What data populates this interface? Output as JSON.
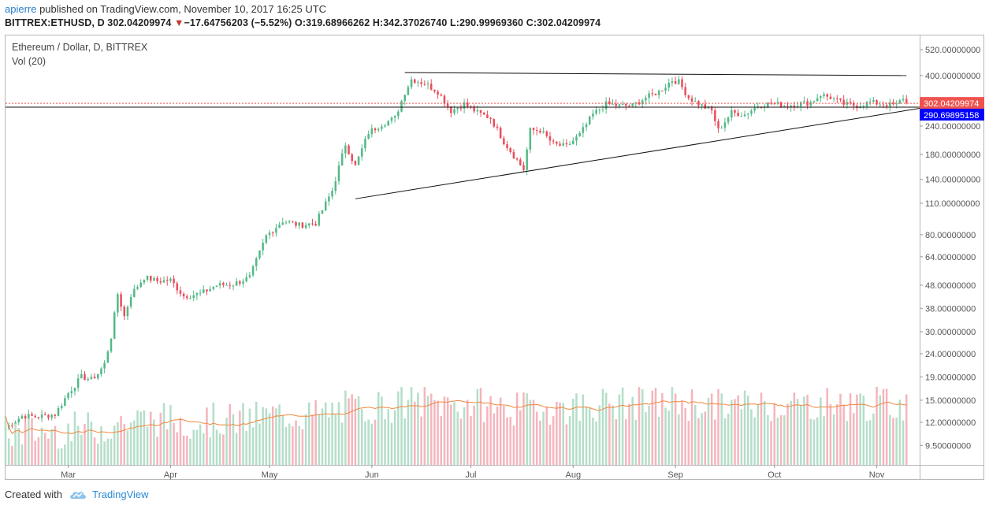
{
  "header": {
    "publisher": "apierre",
    "published_text": " published on TradingView.com, November 10, 2017 16:25 UTC",
    "symbol": "BITTREX:ETHUSD, D",
    "last": "302.04209974",
    "change": "−17.64756203 (−5.52%)",
    "open_label": "O:",
    "open": "319.68966262",
    "high_label": "H:",
    "high": "342.37026740",
    "low_label": "L:",
    "low": "290.99969360",
    "close_label": "C:",
    "close": "302.04209974"
  },
  "legend": {
    "title": "Ethereum / Dollar, D, BITTREX",
    "volume": "Vol (20)"
  },
  "footer": {
    "created_with": "Created with",
    "brand": "TradingView"
  },
  "colors": {
    "up": "#53b987",
    "down": "#eb4d5c",
    "vol_up": "#b5dec9",
    "vol_down": "#f5b5bc",
    "ma": "#f0883e",
    "last_price_tag": "#ef5350",
    "line_tag": "#0000ff"
  },
  "chart_data": {
    "type": "candlestick",
    "title": "Ethereum / Dollar, D, BITTREX",
    "y_scale": "log",
    "ylim": [
      7.8,
      600
    ],
    "y_ticks": [
      "520.00000000",
      "400.00000000",
      "240.00000000",
      "180.00000000",
      "140.00000000",
      "110.00000000",
      "80.00000000",
      "64.00000000",
      "48.00000000",
      "38.00000000",
      "30.00000000",
      "24.00000000",
      "19.00000000",
      "15.00000000",
      "12.00000000",
      "9.50000000"
    ],
    "x_ticks": [
      "Mar",
      "Apr",
      "May",
      "Jun",
      "Jul",
      "Aug",
      "Sep",
      "Oct",
      "Nov"
    ],
    "x_range": [
      "2017-02-10",
      "2017-11-14"
    ],
    "last_price_label": "302.04209974",
    "trendline_value_label": "290.69895158",
    "trendlines": [
      {
        "from": [
          "2017-06-11",
          412
        ],
        "to": [
          "2017-11-10",
          400
        ]
      },
      {
        "from": [
          "2017-05-27",
          115
        ],
        "to": [
          "2017-11-14",
          287
        ]
      }
    ],
    "horizontal_line": 290.7,
    "close_series": [
      [
        "2017-02-10",
        11.3
      ],
      [
        "2017-02-15",
        12.8
      ],
      [
        "2017-02-20",
        12.7
      ],
      [
        "2017-02-25",
        13.0
      ],
      [
        "2017-03-01",
        16.1
      ],
      [
        "2017-03-05",
        19.0
      ],
      [
        "2017-03-08",
        18.5
      ],
      [
        "2017-03-10",
        19.6
      ],
      [
        "2017-03-12",
        21.7
      ],
      [
        "2017-03-14",
        28.5
      ],
      [
        "2017-03-16",
        44.0
      ],
      [
        "2017-03-18",
        35.0
      ],
      [
        "2017-03-20",
        43.5
      ],
      [
        "2017-03-24",
        52.0
      ],
      [
        "2017-03-28",
        50.0
      ],
      [
        "2017-04-01",
        50.5
      ],
      [
        "2017-04-05",
        43.0
      ],
      [
        "2017-04-10",
        44.0
      ],
      [
        "2017-04-15",
        48.0
      ],
      [
        "2017-04-20",
        48.5
      ],
      [
        "2017-04-25",
        52.0
      ],
      [
        "2017-04-30",
        79.0
      ],
      [
        "2017-05-05",
        92.0
      ],
      [
        "2017-05-10",
        88.0
      ],
      [
        "2017-05-15",
        90.0
      ],
      [
        "2017-05-20",
        125.0
      ],
      [
        "2017-05-24",
        200.0
      ],
      [
        "2017-05-27",
        160.0
      ],
      [
        "2017-05-31",
        225.0
      ],
      [
        "2017-06-04",
        245.0
      ],
      [
        "2017-06-08",
        260.0
      ],
      [
        "2017-06-11",
        338.0
      ],
      [
        "2017-06-13",
        385.0
      ],
      [
        "2017-06-17",
        370.0
      ],
      [
        "2017-06-21",
        340.0
      ],
      [
        "2017-06-25",
        280.0
      ],
      [
        "2017-06-29",
        300.0
      ],
      [
        "2017-07-03",
        275.0
      ],
      [
        "2017-07-07",
        260.0
      ],
      [
        "2017-07-11",
        205.0
      ],
      [
        "2017-07-15",
        170.0
      ],
      [
        "2017-07-17",
        155.0
      ],
      [
        "2017-07-19",
        230.0
      ],
      [
        "2017-07-22",
        230.0
      ],
      [
        "2017-07-26",
        200.0
      ],
      [
        "2017-07-30",
        195.0
      ],
      [
        "2017-08-03",
        220.0
      ],
      [
        "2017-08-07",
        270.0
      ],
      [
        "2017-08-11",
        300.0
      ],
      [
        "2017-08-15",
        295.0
      ],
      [
        "2017-08-19",
        295.0
      ],
      [
        "2017-08-23",
        320.0
      ],
      [
        "2017-08-27",
        340.0
      ],
      [
        "2017-08-31",
        382.0
      ],
      [
        "2017-09-02",
        375.0
      ],
      [
        "2017-09-05",
        320.0
      ],
      [
        "2017-09-08",
        300.0
      ],
      [
        "2017-09-12",
        280.0
      ],
      [
        "2017-09-14",
        230.0
      ],
      [
        "2017-09-18",
        275.0
      ],
      [
        "2017-09-22",
        270.0
      ],
      [
        "2017-09-26",
        295.0
      ],
      [
        "2017-09-30",
        302.0
      ],
      [
        "2017-10-04",
        295.0
      ],
      [
        "2017-10-08",
        300.0
      ],
      [
        "2017-10-12",
        305.0
      ],
      [
        "2017-10-15",
        330.0
      ],
      [
        "2017-10-18",
        320.0
      ],
      [
        "2017-10-22",
        300.0
      ],
      [
        "2017-10-26",
        295.0
      ],
      [
        "2017-10-30",
        305.0
      ],
      [
        "2017-11-03",
        300.0
      ],
      [
        "2017-11-07",
        296.0
      ],
      [
        "2017-11-09",
        320.0
      ],
      [
        "2017-11-10",
        302.0
      ]
    ]
  }
}
